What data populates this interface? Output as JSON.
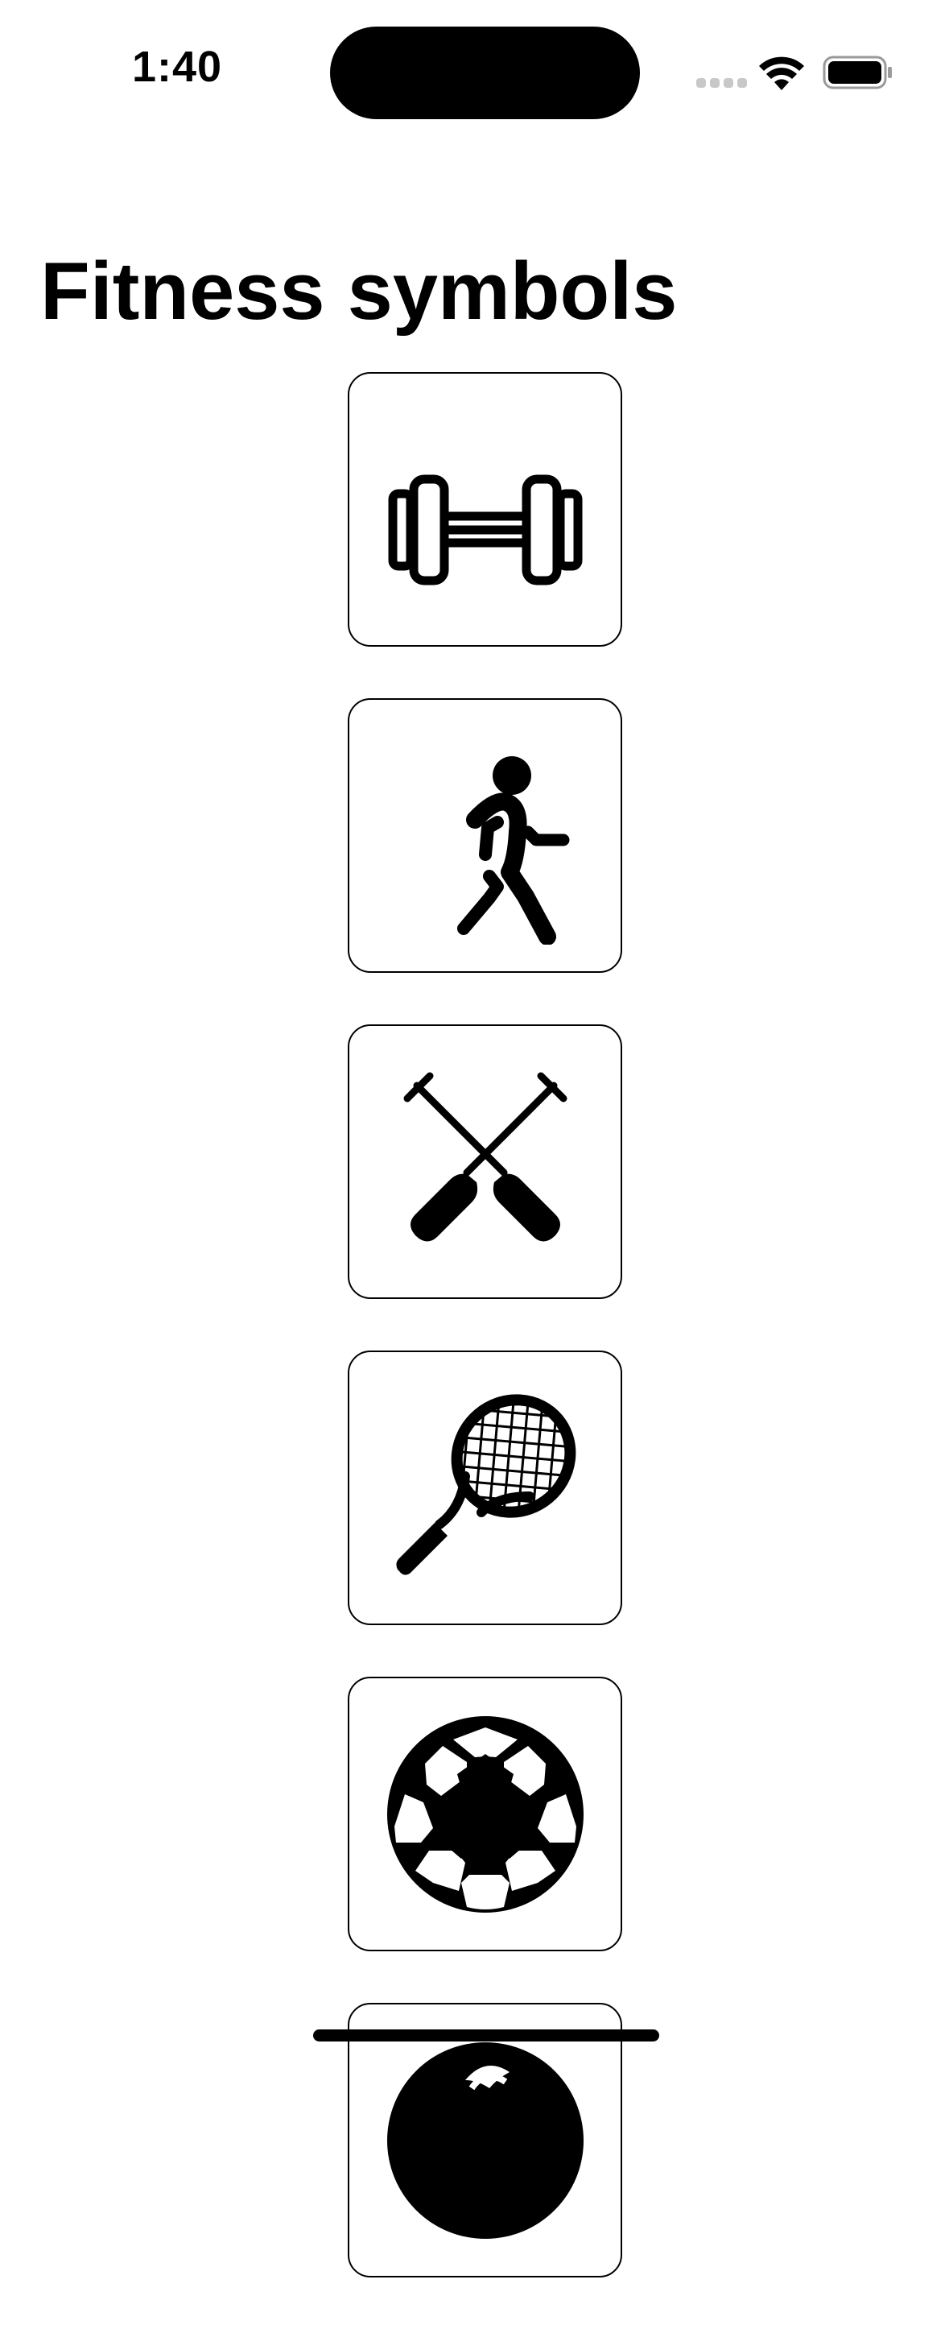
{
  "status_bar": {
    "time": "1:40",
    "icons": [
      "cellular-signal-icon",
      "wifi-icon",
      "battery-icon"
    ]
  },
  "page": {
    "title": "Fitness symbols"
  },
  "symbols": [
    {
      "icon": "dumbbell-icon"
    },
    {
      "icon": "figure-walk-icon"
    },
    {
      "icon": "oars-crossed-icon"
    },
    {
      "icon": "tennis-racket-icon"
    },
    {
      "icon": "soccer-ball-icon"
    },
    {
      "icon": "partial-ball-icon"
    }
  ],
  "colors": {
    "background": "#ffffff",
    "foreground": "#000000",
    "inactive_signal": "#c8c8c8"
  }
}
